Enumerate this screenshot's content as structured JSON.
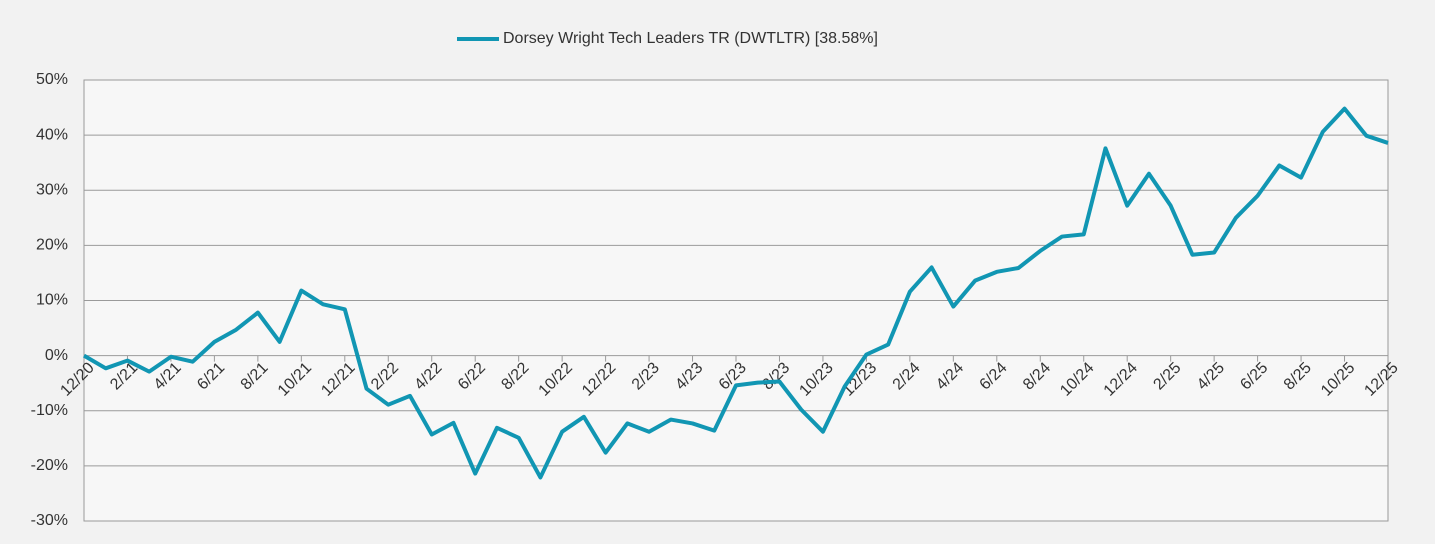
{
  "chart_data": {
    "type": "line",
    "categories": [
      "12/20",
      null,
      "2/21",
      null,
      "4/21",
      null,
      "6/21",
      null,
      "8/21",
      null,
      "10/21",
      null,
      "12/21",
      null,
      "2/22",
      null,
      "4/22",
      null,
      "6/22",
      null,
      "8/22",
      null,
      "10/22",
      null,
      "12/22",
      null,
      "2/23",
      null,
      "4/23",
      null,
      "6/23",
      null,
      "8/23",
      null,
      "10/23",
      null,
      "12/23",
      null,
      "2/24",
      null,
      "4/24",
      null,
      "6/24",
      null,
      "8/24",
      null,
      "10/24",
      null,
      "12/24",
      null,
      "2/25",
      null,
      "4/25",
      null,
      "6/25",
      null,
      "8/25",
      null,
      "10/25",
      null,
      "12/25"
    ],
    "series": [
      {
        "name": "Dorsey Wright Tech Leaders TR (DWTLTR) [38.58%]",
        "color": "#1196b3",
        "values": [
          0,
          -2.3,
          -0.9,
          -2.9,
          -0.2,
          -1.1,
          2.5,
          4.7,
          7.8,
          2.5,
          11.8,
          9.3,
          8.4,
          -6,
          -8.9,
          -7.3,
          -14.3,
          -12.2,
          -21.4,
          -13.1,
          -14.9,
          -22.1,
          -13.8,
          -11.1,
          -17.6,
          -12.3,
          -13.8,
          -11.6,
          -12.3,
          -13.6,
          -5.4,
          -4.9,
          -4.7,
          -9.8,
          -13.8,
          -5.6,
          0.2,
          2,
          11.6,
          16,
          8.9,
          13.6,
          15.2,
          15.9,
          19,
          21.6,
          22,
          37.6,
          27.2,
          33,
          27.2,
          18.3,
          18.7,
          25,
          29,
          34.5,
          32.3,
          40.6,
          44.8,
          39.9,
          38.58
        ]
      }
    ],
    "ylim": [
      -30,
      50
    ],
    "yticks": [
      {
        "value": -30,
        "label": "-30%"
      },
      {
        "value": -20,
        "label": "-20%"
      },
      {
        "value": -10,
        "label": "-10%"
      },
      {
        "value": 0,
        "label": "0%"
      },
      {
        "value": 10,
        "label": "10%"
      },
      {
        "value": 20,
        "label": "20%"
      },
      {
        "value": 30,
        "label": "30%"
      },
      {
        "value": 40,
        "label": "40%"
      },
      {
        "value": 50,
        "label": "50%"
      }
    ],
    "grid": true,
    "legend": "top"
  }
}
